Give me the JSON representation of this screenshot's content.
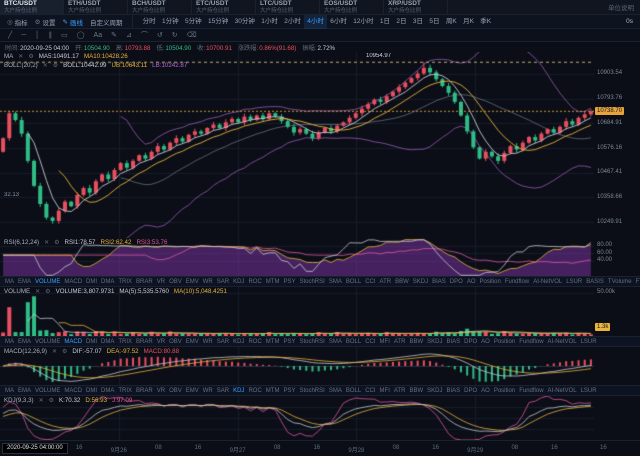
{
  "ticker_bar": {
    "tabs": [
      {
        "pair": "BTC/USDT",
        "sub": "大户持仓比例",
        "active": true
      },
      {
        "pair": "ETH/USDT",
        "sub": "大户持仓比例",
        "active": false
      },
      {
        "pair": "BCH/USDT",
        "sub": "大户持仓比例",
        "active": false
      },
      {
        "pair": "ETC/USDT",
        "sub": "大户持仓比例",
        "active": false
      },
      {
        "pair": "LTC/USDT",
        "sub": "大户持仓比例",
        "active": false
      },
      {
        "pair": "EOS/USDT",
        "sub": "大户持仓比例",
        "active": false
      },
      {
        "pair": "XRP/USDT",
        "sub": "大户持仓比例",
        "active": false
      }
    ],
    "right_label": "单位说明"
  },
  "toolbar": {
    "tools": [
      {
        "icon": "indicator-icon",
        "glyph": "◎",
        "label": "指标",
        "active": false
      },
      {
        "icon": "gear-icon",
        "glyph": "⚙",
        "label": "设置",
        "active": false
      },
      {
        "icon": "pencil-icon",
        "glyph": "✎",
        "label": "画线",
        "active": true
      },
      {
        "icon": "",
        "glyph": "",
        "label": "自定义周期",
        "active": false
      }
    ],
    "timeframes": [
      "分时",
      "1分钟",
      "5分钟",
      "15分钟",
      "30分钟",
      "1小时",
      "2小时",
      "4小时",
      "6小时",
      "12小时",
      "1日",
      "2日",
      "3日",
      "5日",
      "周K",
      "月K",
      "季K"
    ],
    "active_timeframe": "4小时",
    "right_label": "0s"
  },
  "draw_tools": {
    "items": [
      {
        "name": "trend-line-icon",
        "glyph": "╱"
      },
      {
        "name": "horizontal-line-icon",
        "glyph": "─"
      },
      {
        "name": "vertical-line-icon",
        "glyph": "│"
      },
      {
        "name": "channel-icon",
        "glyph": "∥"
      },
      {
        "name": "rectangle-icon",
        "glyph": "▭"
      },
      {
        "name": "circle-icon",
        "glyph": "◯"
      },
      {
        "name": "text-tool-icon",
        "glyph": "Aa"
      },
      {
        "name": "brush-icon",
        "glyph": "✎"
      },
      {
        "name": "measure-icon",
        "glyph": "⊿"
      },
      {
        "name": "magnet-icon",
        "glyph": "⌒"
      },
      {
        "name": "undo-icon",
        "glyph": "↺"
      },
      {
        "name": "redo-icon",
        "glyph": "↻"
      },
      {
        "name": "delete-icon",
        "glyph": "⌫"
      }
    ]
  },
  "ohlc_info": {
    "items": [
      {
        "label": "时间:",
        "value": "2020-09-25 04:00",
        "color": "#c6cede"
      },
      {
        "label": "开:",
        "value": "10504.90",
        "color": "#2fbd85"
      },
      {
        "label": "高:",
        "value": "10793.88",
        "color": "#e8505f"
      },
      {
        "label": "低:",
        "value": "10504.90",
        "color": "#2fbd85"
      },
      {
        "label": "收:",
        "value": "10700.91",
        "color": "#e8505f"
      },
      {
        "label": "涨跌幅:",
        "value": "0.86%(91.68)",
        "color": "#e8505f"
      },
      {
        "label": "振幅:",
        "value": "2.72%",
        "color": "#c6cede"
      }
    ]
  },
  "main_legend": {
    "ma": {
      "title": "MA",
      "items": [
        {
          "text": "MA5:10491.17",
          "color": "#c9ccd4"
        },
        {
          "text": "MA10:10428.26",
          "color": "#e8b53a"
        }
      ]
    },
    "boll": {
      "title": "BOLL:(20,2)",
      "items": [
        {
          "text": "BOLL:10442.99",
          "color": "#c9ccd4"
        },
        {
          "text": "UB:10643.11",
          "color": "#e8b53a"
        },
        {
          "text": "LB:10242.87",
          "color": "#b36ad4"
        }
      ]
    }
  },
  "price_axis": {
    "labels": [
      {
        "text": "10903.54",
        "price": 10903.54
      },
      {
        "text": "10793.76",
        "price": 10793.76
      },
      {
        "text": "10684.91",
        "price": 10684.91
      },
      {
        "text": "10576.16",
        "price": 10576.16
      },
      {
        "text": "10467.41",
        "price": 10467.41
      },
      {
        "text": "10358.66",
        "price": 10358.66
      },
      {
        "text": "10249.91",
        "price": 10249.91
      }
    ],
    "current": {
      "text": "10738.70",
      "price": 10738.7
    },
    "high_annotation": {
      "text": "10954.97",
      "price": 10954.97
    },
    "left_annotation": "32.13"
  },
  "rsi": {
    "legend": {
      "title": "RSI(6,12,24)",
      "items": [
        {
          "text": "RSI1:78.57",
          "color": "#c9ccd4"
        },
        {
          "text": "RSI2:62.42",
          "color": "#e8b53a"
        },
        {
          "text": "RSI3:53.76",
          "color": "#e0559f"
        }
      ]
    },
    "axis": [
      {
        "text": "80.00",
        "v": 80
      },
      {
        "text": "60.00",
        "v": 60
      },
      {
        "text": "40.00",
        "v": 40
      }
    ]
  },
  "indicator_tabs": {
    "row1": {
      "active": "VOLUME",
      "items": [
        "MA",
        "EMA",
        "VOLUME",
        "MACD",
        "DMI",
        "DMA",
        "TRIX",
        "BRAR",
        "VR",
        "OBV",
        "EMV",
        "WR",
        "SAR",
        "KDJ",
        "ROC",
        "MTM",
        "PSY",
        "StochRSI",
        "SMA",
        "BOLL",
        "CCI",
        "ATR",
        "BBW",
        "SKDJ",
        "BIAS",
        "DPO",
        "AO",
        "Position",
        "Fundflow",
        "AI-NetVOL",
        "LSUR",
        "BASIS",
        "TVolume",
        "FTBS"
      ]
    },
    "row2": {
      "active": "MACD",
      "items": [
        "MA",
        "EMA",
        "VOLUME",
        "MACD",
        "DMI",
        "DMA",
        "TRIX",
        "BRAR",
        "VR",
        "OBV",
        "EMV",
        "WR",
        "SAR",
        "KDJ",
        "ROC",
        "MTM",
        "PSY",
        "StochRSI",
        "SMA",
        "BOLL",
        "CCI",
        "MFI",
        "ATR",
        "BBW",
        "SKDJ",
        "BIAS",
        "DPO",
        "AO",
        "Position",
        "Fundflow",
        "AI-NetVOL",
        "LSUR"
      ]
    },
    "row3": {
      "active": "KDJ",
      "items": [
        "MA",
        "EMA",
        "VOLUME",
        "MACD",
        "DMI",
        "DMA",
        "TRIX",
        "BRAR",
        "VR",
        "OBV",
        "EMV",
        "WR",
        "SAR",
        "KDJ",
        "ROC",
        "MTM",
        "PSY",
        "StochRSI",
        "SMA",
        "BOLL",
        "CCI",
        "MFI",
        "ATR",
        "BBW",
        "SKDJ",
        "BIAS",
        "DPO",
        "AO",
        "Position",
        "Fundflow",
        "AI-NetVOL",
        "LSUR"
      ]
    }
  },
  "volume": {
    "legend": {
      "title": "VOLUME",
      "items": [
        {
          "text": "VOLUME:3,807.9731",
          "color": "#c6cede"
        },
        {
          "text": "MA(5):5,535.5760",
          "color": "#c9ccd4"
        },
        {
          "text": "MA(10):5,048.4251",
          "color": "#e8b53a"
        }
      ]
    },
    "axis_top": "50.00k",
    "badge": "1.3k"
  },
  "macd": {
    "legend": {
      "title": "MACD(12,26,9)",
      "items": [
        {
          "text": "DIF:-57.07",
          "color": "#c9ccd4"
        },
        {
          "text": "DEA:-97.52",
          "color": "#e8b53a"
        },
        {
          "text": "MACD:80.88",
          "color": "#e8505f"
        }
      ]
    }
  },
  "kdj": {
    "legend": {
      "title": "KDJ(9,3,3)",
      "items": [
        {
          "text": "K:70.32",
          "color": "#c9ccd4"
        },
        {
          "text": "D:56.93",
          "color": "#e8b53a"
        },
        {
          "text": "J:97.09",
          "color": "#e0559f"
        }
      ]
    }
  },
  "time_axis": {
    "tooltip": "2020-09-25 04:00:00",
    "labels": [
      "08",
      "16",
      "9月26",
      "08",
      "16",
      "9月27",
      "08",
      "16",
      "9月28",
      "08",
      "16",
      "9月29",
      "08",
      "16"
    ],
    "right": "16"
  },
  "chart_data": {
    "type": "candlestick",
    "pair": "BTC/USDT",
    "timeframe_selected": "4小时",
    "hovered_candle": {
      "time": "2020-09-25 04:00",
      "open": 10504.9,
      "high": 10793.88,
      "low": 10504.9,
      "close": 10700.91,
      "change_pct": "0.86%",
      "change_abs": 91.68,
      "amplitude": "2.72%"
    },
    "current_price": 10738.7,
    "session_high_line": 10954.97,
    "session_low": 10243.0,
    "price_axis_min": 10180,
    "price_axis_max": 11000,
    "gridline_prices": [
      10903.54,
      10793.76,
      10684.91,
      10576.16,
      10467.41,
      10358.66,
      10249.91
    ],
    "first_open": 10560,
    "closes": [
      10620,
      10730,
      10700,
      10640,
      10520,
      10410,
      10330,
      10270,
      10255,
      10300,
      10340,
      10320,
      10370,
      10400,
      10380,
      10430,
      10460,
      10440,
      10480,
      10510,
      10490,
      10520,
      10545,
      10530,
      10560,
      10585,
      10570,
      10600,
      10620,
      10605,
      10635,
      10650,
      10640,
      10665,
      10680,
      10665,
      10690,
      10705,
      10690,
      10715,
      10700,
      10720,
      10705,
      10730,
      10715,
      10695,
      10670,
      10645,
      10660,
      10640,
      10620,
      10645,
      10665,
      10650,
      10675,
      10690,
      10710,
      10730,
      10750,
      10770,
      10790,
      10780,
      10805,
      10825,
      10845,
      10865,
      10885,
      10905,
      10930,
      10910,
      10880,
      10850,
      10820,
      10780,
      10720,
      10650,
      10580,
      10530,
      10560,
      10540,
      10520,
      10555,
      10585,
      10570,
      10600,
      10625,
      10610,
      10640,
      10660,
      10645,
      10670,
      10695,
      10680,
      10710,
      10725,
      10738.7
    ],
    "peak_index": 68,
    "low_index": 8,
    "volume_axis_max": 50000,
    "volume_last_label": "1.3k",
    "ma_last": {
      "ma5": 10491.17,
      "ma10": 10428.26
    },
    "boll_last": {
      "mid": 10442.99,
      "ub": 10643.11,
      "lb": 10242.87
    },
    "rsi_last": {
      "rsi1": 78.57,
      "rsi2": 62.42,
      "rsi3": 53.76
    },
    "macd_last": {
      "dif": -57.07,
      "dea": -97.52,
      "macd": 80.88
    },
    "kdj_last": {
      "k": 70.32,
      "d": 56.93,
      "j": 97.09
    },
    "up_color": "#e8505f",
    "down_color": "#2fbd85"
  }
}
